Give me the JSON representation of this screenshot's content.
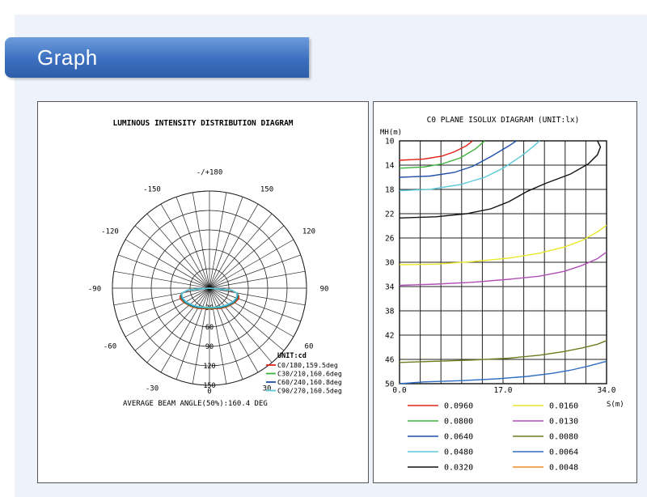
{
  "header": {
    "title": "Graph"
  },
  "chart_data": [
    {
      "type": "polar",
      "title": "LUMINOUS INTENSITY DISTRIBUTION DIAGRAM",
      "angle_labels": [
        {
          "angle": 180,
          "label": "-/+180"
        },
        {
          "angle": 150,
          "label": "150"
        },
        {
          "angle": -150,
          "label": "-150"
        },
        {
          "angle": 120,
          "label": "120"
        },
        {
          "angle": -120,
          "label": "-120"
        },
        {
          "angle": 90,
          "label": "90"
        },
        {
          "angle": -90,
          "label": "-90"
        },
        {
          "angle": 60,
          "label": "60"
        },
        {
          "angle": -60,
          "label": "-60"
        },
        {
          "angle": 30,
          "label": "30"
        },
        {
          "angle": -30,
          "label": "-30"
        },
        {
          "angle": 0,
          "label": "0"
        }
      ],
      "radial_ticks": [
        0,
        30,
        60,
        90,
        120,
        150
      ],
      "radial_max": 150,
      "unit_label": "UNIT:cd",
      "series": [
        {
          "name": "C0/180,159.5deg",
          "color": "#e2231a",
          "points": [
            [
              90,
              0
            ],
            [
              85,
              30
            ],
            [
              80,
              42
            ],
            [
              75,
              47
            ],
            [
              70,
              48
            ],
            [
              60,
              45
            ],
            [
              45,
              40
            ],
            [
              30,
              36
            ],
            [
              0,
              32
            ],
            [
              -30,
              36
            ],
            [
              -45,
              40
            ],
            [
              -60,
              45
            ],
            [
              -70,
              48
            ],
            [
              -75,
              47
            ],
            [
              -80,
              42
            ],
            [
              -85,
              30
            ],
            [
              -90,
              0
            ]
          ]
        },
        {
          "name": "C30/210,160.6deg",
          "color": "#3cb33c",
          "points": [
            [
              90,
              0
            ],
            [
              85,
              32
            ],
            [
              80,
              43
            ],
            [
              75,
              46
            ],
            [
              70,
              46
            ],
            [
              60,
              44
            ],
            [
              45,
              39
            ],
            [
              30,
              35
            ],
            [
              0,
              31
            ],
            [
              -30,
              35
            ],
            [
              -45,
              39
            ],
            [
              -60,
              44
            ],
            [
              -70,
              46
            ],
            [
              -75,
              46
            ],
            [
              -80,
              43
            ],
            [
              -85,
              32
            ],
            [
              -90,
              0
            ]
          ]
        },
        {
          "name": "C60/240,160.8deg",
          "color": "#1f4fa8",
          "points": [
            [
              90,
              0
            ],
            [
              85,
              33
            ],
            [
              80,
              43
            ],
            [
              75,
              45
            ],
            [
              70,
              45
            ],
            [
              60,
              43
            ],
            [
              45,
              38
            ],
            [
              30,
              34
            ],
            [
              0,
              30
            ],
            [
              -30,
              34
            ],
            [
              -45,
              38
            ],
            [
              -60,
              43
            ],
            [
              -70,
              45
            ],
            [
              -75,
              45
            ],
            [
              -80,
              43
            ],
            [
              -85,
              33
            ],
            [
              -90,
              0
            ]
          ]
        },
        {
          "name": "C90/270,160.5deg",
          "color": "#5bc8d8",
          "points": [
            [
              90,
              0
            ],
            [
              85,
              34
            ],
            [
              80,
              43
            ],
            [
              75,
              44
            ],
            [
              70,
              44
            ],
            [
              60,
              42
            ],
            [
              45,
              37
            ],
            [
              30,
              33
            ],
            [
              0,
              30
            ],
            [
              -30,
              33
            ],
            [
              -45,
              37
            ],
            [
              -60,
              42
            ],
            [
              -70,
              44
            ],
            [
              -75,
              44
            ],
            [
              -80,
              43
            ],
            [
              -85,
              34
            ],
            [
              -90,
              0
            ]
          ]
        }
      ],
      "footer": "AVERAGE BEAM ANGLE(50%):160.4 DEG"
    },
    {
      "type": "line",
      "title": "C0 PLANE ISOLUX DIAGRAM (UNIT:lx)",
      "ylabel": "MH(m)",
      "xlabel": "S(m)",
      "xlim": [
        0,
        34
      ],
      "ylim": [
        10,
        50
      ],
      "y_inverted": true,
      "x_ticks": [
        "0.0",
        "17.0",
        "34.0"
      ],
      "y_ticks": [
        "10",
        "14",
        "18",
        "22",
        "26",
        "30",
        "34",
        "38",
        "42",
        "46",
        "50"
      ],
      "series": [
        {
          "name": "0.0960",
          "color": "#e2231a",
          "points": [
            [
              0,
              13.2
            ],
            [
              4,
              13
            ],
            [
              7,
              12.5
            ],
            [
              9,
              11.8
            ],
            [
              11,
              10.8
            ],
            [
              12,
              10
            ]
          ]
        },
        {
          "name": "0.0800",
          "color": "#3cb33c",
          "points": [
            [
              0,
              14.5
            ],
            [
              4,
              14.3
            ],
            [
              7,
              13.8
            ],
            [
              10,
              12.8
            ],
            [
              12.5,
              11.3
            ],
            [
              14,
              10
            ]
          ]
        },
        {
          "name": "0.0640",
          "color": "#1f4fa8",
          "points": [
            [
              0,
              16
            ],
            [
              5,
              15.8
            ],
            [
              9,
              15.2
            ],
            [
              12,
              14.2
            ],
            [
              15,
              12.6
            ],
            [
              18,
              10.8
            ],
            [
              19.2,
              10
            ]
          ]
        },
        {
          "name": "0.0480",
          "color": "#5bc8d8",
          "points": [
            [
              0,
              18.2
            ],
            [
              5,
              18
            ],
            [
              10,
              17.2
            ],
            [
              14,
              16
            ],
            [
              17,
              14.5
            ],
            [
              20,
              12.5
            ],
            [
              22,
              10.9
            ],
            [
              23,
              10
            ]
          ]
        },
        {
          "name": "0.0320",
          "color": "#111111",
          "points": [
            [
              0,
              22.7
            ],
            [
              6,
              22.5
            ],
            [
              11,
              22
            ],
            [
              15,
              21.2
            ],
            [
              18,
              20
            ],
            [
              21,
              18.3
            ],
            [
              24,
              17
            ],
            [
              28,
              15.5
            ],
            [
              31,
              13.8
            ],
            [
              32.5,
              12.3
            ],
            [
              33,
              11
            ],
            [
              32.5,
              10
            ]
          ]
        },
        {
          "name": "0.0160",
          "color": "#e8e82a",
          "points": [
            [
              0,
              30.4
            ],
            [
              6,
              30.3
            ],
            [
              12,
              29.9
            ],
            [
              18,
              29.3
            ],
            [
              23,
              28.5
            ],
            [
              27,
              27.5
            ],
            [
              30,
              26.4
            ],
            [
              32.5,
              25
            ],
            [
              34,
              23.9
            ]
          ]
        },
        {
          "name": "0.0130",
          "color": "#b04fb5",
          "points": [
            [
              0,
              33.8
            ],
            [
              6,
              33.6
            ],
            [
              12,
              33.3
            ],
            [
              18,
              32.8
            ],
            [
              23,
              32.3
            ],
            [
              27,
              31.5
            ],
            [
              30,
              30.5
            ],
            [
              32.5,
              29.4
            ],
            [
              34,
              28.3
            ]
          ]
        },
        {
          "name": "0.0080",
          "color": "#6f7a1f",
          "points": [
            [
              0,
              46.5
            ],
            [
              6,
              46.3
            ],
            [
              12,
              46.1
            ],
            [
              18,
              45.8
            ],
            [
              23,
              45.3
            ],
            [
              27,
              44.7
            ],
            [
              30,
              44.1
            ],
            [
              32.5,
              43.5
            ],
            [
              34,
              42.9
            ]
          ]
        },
        {
          "name": "0.0064",
          "color": "#2f6ec0",
          "points": [
            [
              0,
              50
            ],
            [
              4,
              49.7
            ],
            [
              10,
              49.5
            ],
            [
              16,
              49.2
            ],
            [
              21,
              48.8
            ],
            [
              25,
              48.3
            ],
            [
              28,
              47.8
            ],
            [
              31,
              47.1
            ],
            [
              34,
              46.3
            ]
          ]
        },
        {
          "name": "0.0048",
          "color": "#f08a2a",
          "points": []
        }
      ]
    }
  ]
}
